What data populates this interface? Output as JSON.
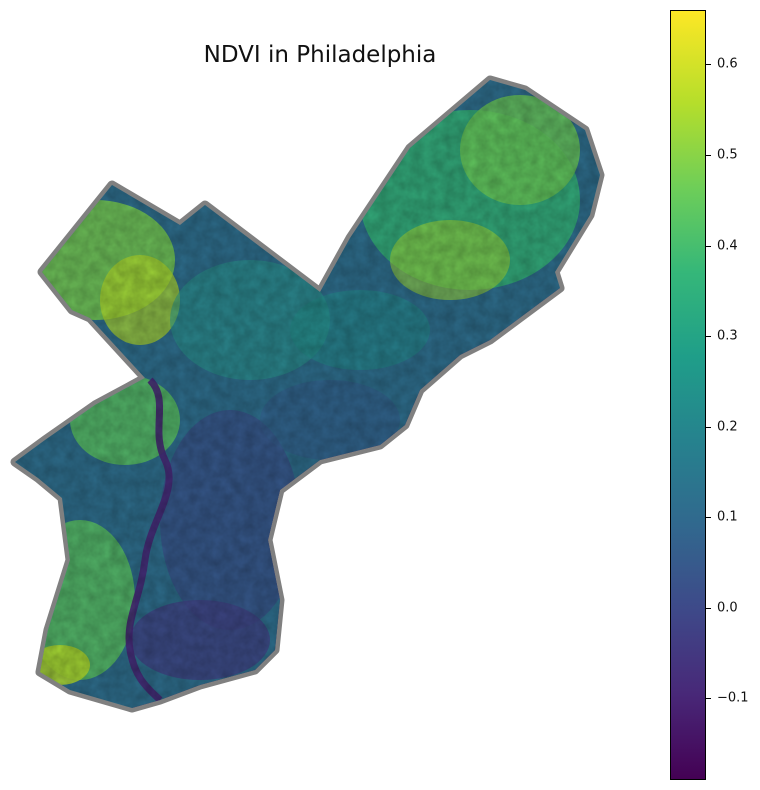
{
  "title": "NDVI in Philadelphia",
  "colorbar": {
    "colormap": "viridis",
    "min": -0.19,
    "max": 0.66,
    "ticks": [
      {
        "value": 0.6,
        "label": "0.6"
      },
      {
        "value": 0.5,
        "label": "0.5"
      },
      {
        "value": 0.4,
        "label": "0.4"
      },
      {
        "value": 0.3,
        "label": "0.3"
      },
      {
        "value": 0.2,
        "label": "0.2"
      },
      {
        "value": 0.1,
        "label": "0.1"
      },
      {
        "value": 0.0,
        "label": "0.0"
      },
      {
        "value": -0.1,
        "label": "−0.1"
      }
    ]
  },
  "colors": {
    "boundary": "#808080",
    "low": "#440154",
    "mid": "#2a788e",
    "high": "#fde725"
  }
}
